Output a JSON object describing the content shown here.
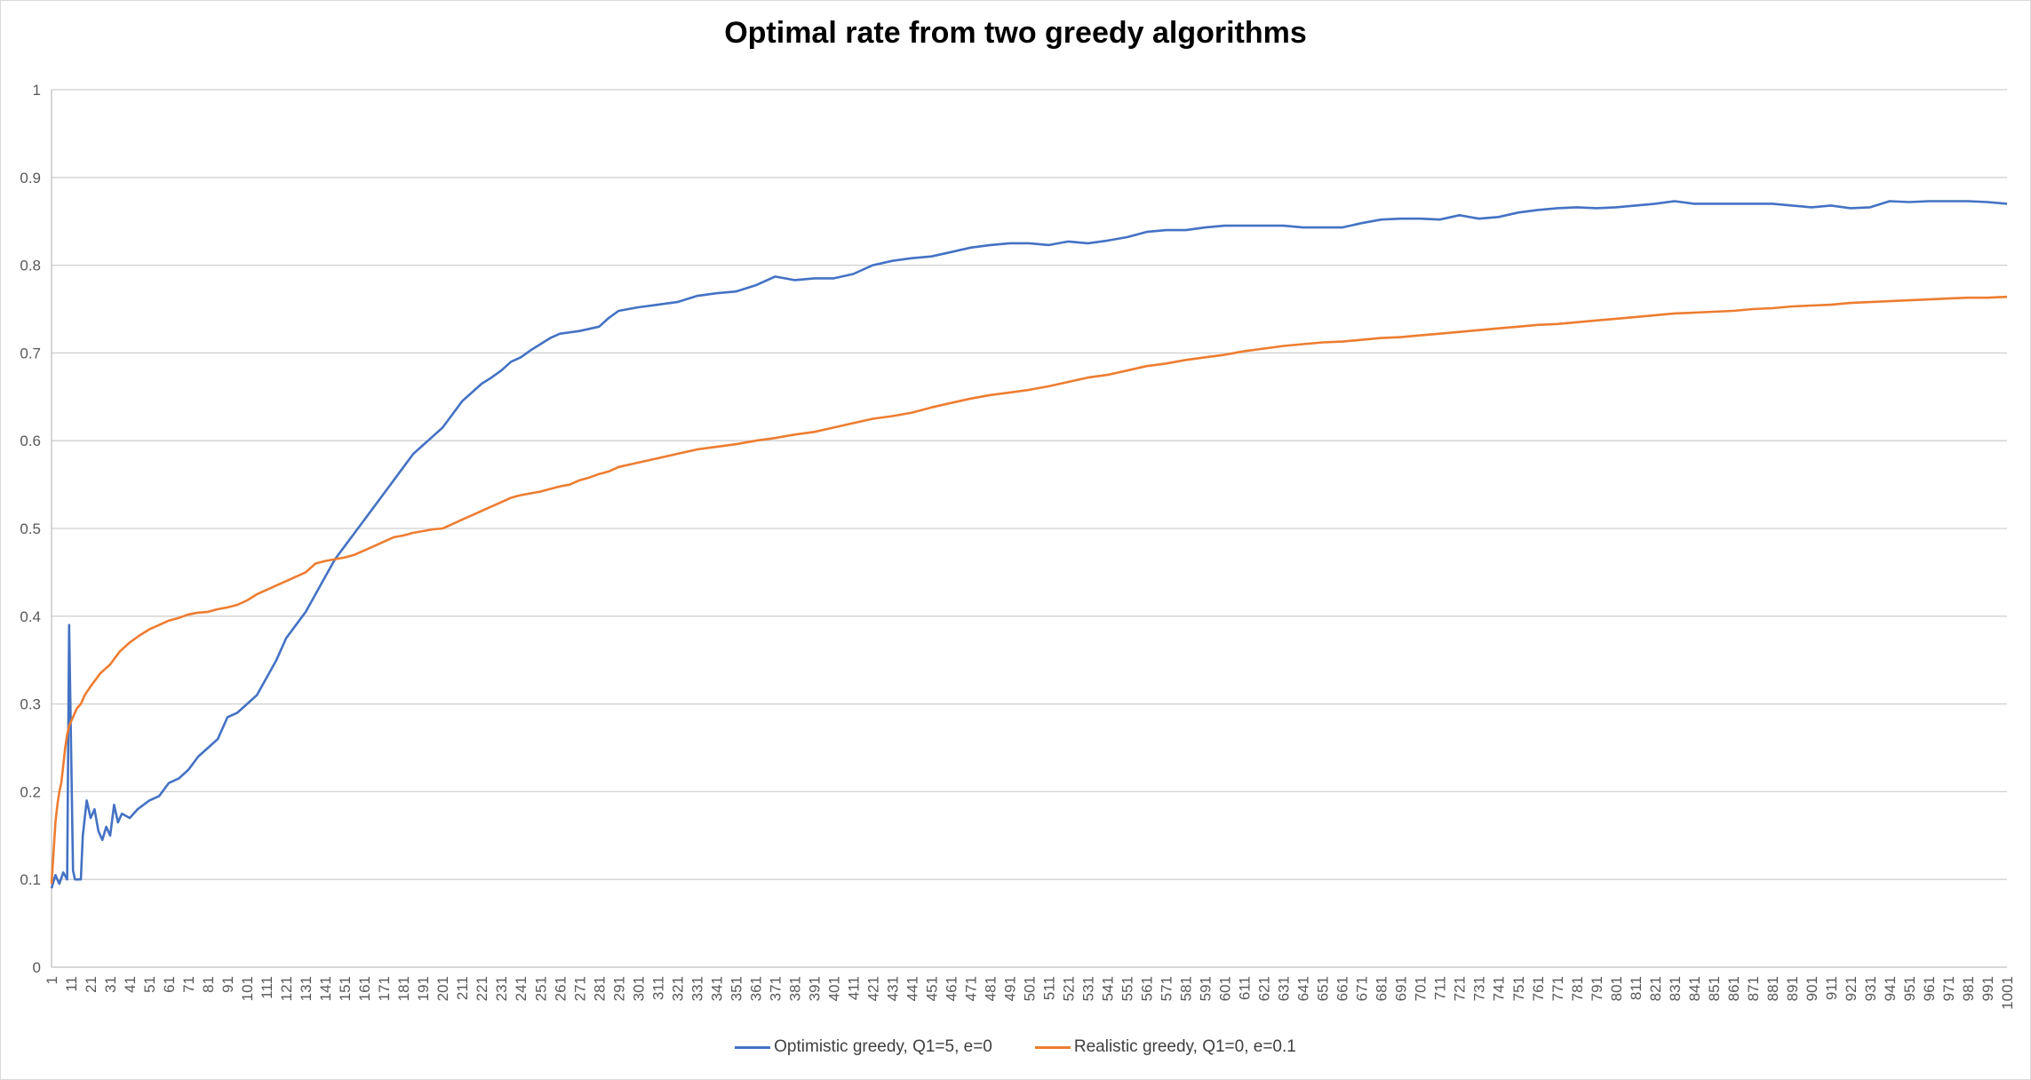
{
  "chart_data": {
    "type": "line",
    "title": "Optimal rate from two greedy algorithms",
    "xlabel": "",
    "ylabel": "",
    "ylim": [
      0,
      1
    ],
    "xlim": [
      1,
      1001
    ],
    "y_ticks": [
      "0",
      "0.1",
      "0.2",
      "0.3",
      "0.4",
      "0.5",
      "0.6",
      "0.7",
      "0.8",
      "0.9",
      "1"
    ],
    "x_tick_step": 10,
    "grid": true,
    "legend_position": "bottom",
    "series": [
      {
        "name": "Optimistic greedy, Q1=5, e=0",
        "color": "#4472C4",
        "points": [
          [
            1,
            0.09
          ],
          [
            3,
            0.105
          ],
          [
            5,
            0.095
          ],
          [
            7,
            0.108
          ],
          [
            9,
            0.1
          ],
          [
            10,
            0.39
          ],
          [
            11,
            0.25
          ],
          [
            12,
            0.11
          ],
          [
            13,
            0.1
          ],
          [
            15,
            0.1
          ],
          [
            16,
            0.1
          ],
          [
            17,
            0.15
          ],
          [
            19,
            0.19
          ],
          [
            21,
            0.17
          ],
          [
            23,
            0.18
          ],
          [
            25,
            0.155
          ],
          [
            27,
            0.145
          ],
          [
            29,
            0.16
          ],
          [
            31,
            0.15
          ],
          [
            33,
            0.185
          ],
          [
            35,
            0.165
          ],
          [
            37,
            0.175
          ],
          [
            41,
            0.17
          ],
          [
            45,
            0.18
          ],
          [
            51,
            0.19
          ],
          [
            56,
            0.195
          ],
          [
            61,
            0.21
          ],
          [
            66,
            0.215
          ],
          [
            71,
            0.225
          ],
          [
            76,
            0.24
          ],
          [
            81,
            0.25
          ],
          [
            86,
            0.26
          ],
          [
            91,
            0.285
          ],
          [
            96,
            0.29
          ],
          [
            101,
            0.3
          ],
          [
            106,
            0.31
          ],
          [
            111,
            0.33
          ],
          [
            116,
            0.35
          ],
          [
            121,
            0.375
          ],
          [
            126,
            0.39
          ],
          [
            131,
            0.405
          ],
          [
            136,
            0.425
          ],
          [
            141,
            0.445
          ],
          [
            146,
            0.465
          ],
          [
            151,
            0.48
          ],
          [
            156,
            0.495
          ],
          [
            161,
            0.51
          ],
          [
            166,
            0.525
          ],
          [
            171,
            0.54
          ],
          [
            176,
            0.555
          ],
          [
            181,
            0.57
          ],
          [
            186,
            0.585
          ],
          [
            191,
            0.595
          ],
          [
            196,
            0.605
          ],
          [
            201,
            0.615
          ],
          [
            206,
            0.63
          ],
          [
            211,
            0.645
          ],
          [
            216,
            0.655
          ],
          [
            221,
            0.665
          ],
          [
            226,
            0.672
          ],
          [
            231,
            0.68
          ],
          [
            236,
            0.69
          ],
          [
            241,
            0.695
          ],
          [
            246,
            0.703
          ],
          [
            251,
            0.71
          ],
          [
            256,
            0.717
          ],
          [
            261,
            0.722
          ],
          [
            271,
            0.725
          ],
          [
            281,
            0.73
          ],
          [
            286,
            0.74
          ],
          [
            291,
            0.748
          ],
          [
            301,
            0.752
          ],
          [
            311,
            0.755
          ],
          [
            321,
            0.758
          ],
          [
            331,
            0.765
          ],
          [
            341,
            0.768
          ],
          [
            351,
            0.77
          ],
          [
            361,
            0.777
          ],
          [
            371,
            0.787
          ],
          [
            381,
            0.783
          ],
          [
            391,
            0.785
          ],
          [
            401,
            0.785
          ],
          [
            411,
            0.79
          ],
          [
            421,
            0.8
          ],
          [
            431,
            0.805
          ],
          [
            441,
            0.808
          ],
          [
            451,
            0.81
          ],
          [
            461,
            0.815
          ],
          [
            471,
            0.82
          ],
          [
            481,
            0.823
          ],
          [
            491,
            0.825
          ],
          [
            501,
            0.825
          ],
          [
            511,
            0.823
          ],
          [
            521,
            0.827
          ],
          [
            531,
            0.825
          ],
          [
            541,
            0.828
          ],
          [
            551,
            0.832
          ],
          [
            561,
            0.838
          ],
          [
            571,
            0.84
          ],
          [
            581,
            0.84
          ],
          [
            591,
            0.843
          ],
          [
            601,
            0.845
          ],
          [
            611,
            0.845
          ],
          [
            621,
            0.845
          ],
          [
            631,
            0.845
          ],
          [
            641,
            0.843
          ],
          [
            651,
            0.843
          ],
          [
            661,
            0.843
          ],
          [
            671,
            0.848
          ],
          [
            681,
            0.852
          ],
          [
            691,
            0.853
          ],
          [
            701,
            0.853
          ],
          [
            711,
            0.852
          ],
          [
            721,
            0.857
          ],
          [
            731,
            0.853
          ],
          [
            741,
            0.855
          ],
          [
            751,
            0.86
          ],
          [
            761,
            0.863
          ],
          [
            771,
            0.865
          ],
          [
            781,
            0.866
          ],
          [
            791,
            0.865
          ],
          [
            801,
            0.866
          ],
          [
            811,
            0.868
          ],
          [
            821,
            0.87
          ],
          [
            831,
            0.873
          ],
          [
            841,
            0.87
          ],
          [
            851,
            0.87
          ],
          [
            861,
            0.87
          ],
          [
            871,
            0.87
          ],
          [
            881,
            0.87
          ],
          [
            891,
            0.868
          ],
          [
            901,
            0.866
          ],
          [
            911,
            0.868
          ],
          [
            921,
            0.865
          ],
          [
            931,
            0.866
          ],
          [
            941,
            0.873
          ],
          [
            951,
            0.872
          ],
          [
            961,
            0.873
          ],
          [
            971,
            0.873
          ],
          [
            981,
            0.873
          ],
          [
            991,
            0.872
          ],
          [
            1001,
            0.87
          ]
        ]
      },
      {
        "name": "Realistic greedy, Q1=0, e=0.1",
        "color": "#ED7D31",
        "points": [
          [
            1,
            0.095
          ],
          [
            2,
            0.13
          ],
          [
            3,
            0.165
          ],
          [
            4,
            0.185
          ],
          [
            5,
            0.2
          ],
          [
            6,
            0.21
          ],
          [
            7,
            0.23
          ],
          [
            8,
            0.25
          ],
          [
            9,
            0.265
          ],
          [
            10,
            0.275
          ],
          [
            12,
            0.285
          ],
          [
            14,
            0.295
          ],
          [
            16,
            0.3
          ],
          [
            18,
            0.31
          ],
          [
            21,
            0.32
          ],
          [
            26,
            0.335
          ],
          [
            31,
            0.345
          ],
          [
            36,
            0.36
          ],
          [
            41,
            0.37
          ],
          [
            46,
            0.378
          ],
          [
            51,
            0.385
          ],
          [
            56,
            0.39
          ],
          [
            61,
            0.395
          ],
          [
            66,
            0.398
          ],
          [
            71,
            0.402
          ],
          [
            76,
            0.404
          ],
          [
            81,
            0.405
          ],
          [
            86,
            0.408
          ],
          [
            91,
            0.41
          ],
          [
            96,
            0.413
          ],
          [
            101,
            0.418
          ],
          [
            106,
            0.425
          ],
          [
            111,
            0.43
          ],
          [
            116,
            0.435
          ],
          [
            121,
            0.44
          ],
          [
            126,
            0.445
          ],
          [
            131,
            0.45
          ],
          [
            136,
            0.46
          ],
          [
            141,
            0.463
          ],
          [
            146,
            0.465
          ],
          [
            151,
            0.467
          ],
          [
            156,
            0.47
          ],
          [
            161,
            0.475
          ],
          [
            166,
            0.48
          ],
          [
            171,
            0.485
          ],
          [
            176,
            0.49
          ],
          [
            181,
            0.492
          ],
          [
            186,
            0.495
          ],
          [
            191,
            0.497
          ],
          [
            196,
            0.499
          ],
          [
            201,
            0.5
          ],
          [
            206,
            0.505
          ],
          [
            211,
            0.51
          ],
          [
            216,
            0.515
          ],
          [
            221,
            0.52
          ],
          [
            226,
            0.525
          ],
          [
            231,
            0.53
          ],
          [
            236,
            0.535
          ],
          [
            241,
            0.538
          ],
          [
            246,
            0.54
          ],
          [
            251,
            0.542
          ],
          [
            256,
            0.545
          ],
          [
            261,
            0.548
          ],
          [
            266,
            0.55
          ],
          [
            271,
            0.555
          ],
          [
            276,
            0.558
          ],
          [
            281,
            0.562
          ],
          [
            286,
            0.565
          ],
          [
            291,
            0.57
          ],
          [
            301,
            0.575
          ],
          [
            311,
            0.58
          ],
          [
            321,
            0.585
          ],
          [
            331,
            0.59
          ],
          [
            341,
            0.593
          ],
          [
            351,
            0.596
          ],
          [
            361,
            0.6
          ],
          [
            371,
            0.603
          ],
          [
            381,
            0.607
          ],
          [
            391,
            0.61
          ],
          [
            401,
            0.615
          ],
          [
            411,
            0.62
          ],
          [
            421,
            0.625
          ],
          [
            431,
            0.628
          ],
          [
            441,
            0.632
          ],
          [
            451,
            0.638
          ],
          [
            461,
            0.643
          ],
          [
            471,
            0.648
          ],
          [
            481,
            0.652
          ],
          [
            491,
            0.655
          ],
          [
            501,
            0.658
          ],
          [
            511,
            0.662
          ],
          [
            521,
            0.667
          ],
          [
            531,
            0.672
          ],
          [
            541,
            0.675
          ],
          [
            551,
            0.68
          ],
          [
            561,
            0.685
          ],
          [
            571,
            0.688
          ],
          [
            581,
            0.692
          ],
          [
            591,
            0.695
          ],
          [
            601,
            0.698
          ],
          [
            611,
            0.702
          ],
          [
            621,
            0.705
          ],
          [
            631,
            0.708
          ],
          [
            641,
            0.71
          ],
          [
            651,
            0.712
          ],
          [
            661,
            0.713
          ],
          [
            671,
            0.715
          ],
          [
            681,
            0.717
          ],
          [
            691,
            0.718
          ],
          [
            701,
            0.72
          ],
          [
            711,
            0.722
          ],
          [
            721,
            0.724
          ],
          [
            731,
            0.726
          ],
          [
            741,
            0.728
          ],
          [
            751,
            0.73
          ],
          [
            761,
            0.732
          ],
          [
            771,
            0.733
          ],
          [
            781,
            0.735
          ],
          [
            791,
            0.737
          ],
          [
            801,
            0.739
          ],
          [
            811,
            0.741
          ],
          [
            821,
            0.743
          ],
          [
            831,
            0.745
          ],
          [
            841,
            0.746
          ],
          [
            851,
            0.747
          ],
          [
            861,
            0.748
          ],
          [
            871,
            0.75
          ],
          [
            881,
            0.751
          ],
          [
            891,
            0.753
          ],
          [
            901,
            0.754
          ],
          [
            911,
            0.755
          ],
          [
            921,
            0.757
          ],
          [
            931,
            0.758
          ],
          [
            941,
            0.759
          ],
          [
            951,
            0.76
          ],
          [
            961,
            0.761
          ],
          [
            971,
            0.762
          ],
          [
            981,
            0.763
          ],
          [
            991,
            0.763
          ],
          [
            1001,
            0.764
          ]
        ]
      }
    ]
  }
}
